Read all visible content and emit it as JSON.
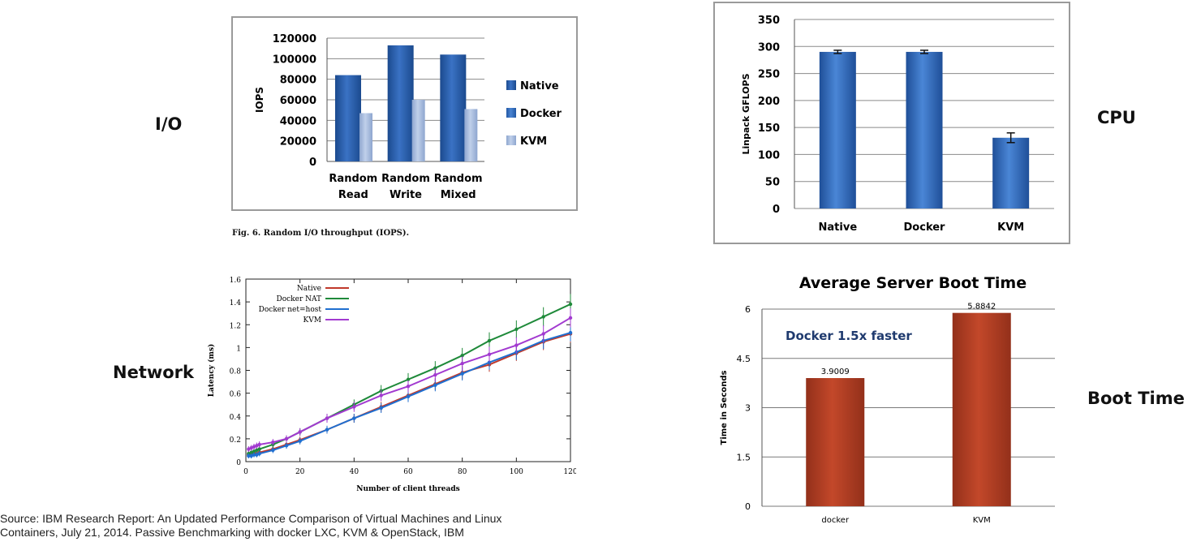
{
  "labels": {
    "io": "I/O",
    "cpu": "CPU",
    "network": "Network",
    "boot": "Boot Time"
  },
  "source": {
    "line1": "Source: IBM Research Report: An Updated Performance Comparison of Virtual Machines and Linux",
    "line2": "Containers, July 21, 2014. Passive Benchmarking with docker LXC, KVM & OpenStack, IBM"
  },
  "colors": {
    "native": "#1e4f9a",
    "docker": "#2a63b3",
    "kvm": "#9fb4d8",
    "cpu_bar": "#2c66b8",
    "boot_bar": "#b03a1f"
  },
  "chart_data": [
    {
      "id": "io",
      "type": "bar",
      "caption": "Fig. 6.    Random I/O throughput (IOPS).",
      "categories": [
        [
          "Random",
          "Read"
        ],
        [
          "Random",
          "Write"
        ],
        [
          "Random",
          "Mixed"
        ]
      ],
      "ylabel": "IOPS",
      "ylim": [
        0,
        120000
      ],
      "yticks": [
        "0",
        "20000",
        "40000",
        "60000",
        "80000",
        "100000",
        "120000"
      ],
      "grid": true,
      "legend_position": "right",
      "series": [
        {
          "name": "Native",
          "values": [
            84000,
            113000,
            104000
          ]
        },
        {
          "name": "Docker",
          "values": [
            84000,
            113000,
            104000
          ]
        },
        {
          "name": "KVM",
          "values": [
            47000,
            60000,
            51000
          ]
        }
      ]
    },
    {
      "id": "cpu",
      "type": "bar",
      "categories": [
        "Native",
        "Docker",
        "KVM"
      ],
      "ylabel": "Linpack GFLOPS",
      "ylim": [
        0,
        350
      ],
      "yticks": [
        "0",
        "50",
        "100",
        "150",
        "200",
        "250",
        "300",
        "350"
      ],
      "grid": true,
      "values": [
        290,
        290,
        131
      ],
      "errors": [
        3,
        3,
        9
      ]
    },
    {
      "id": "network",
      "type": "line",
      "xlabel": "Number of client threads",
      "ylabel": "Latency (ms)",
      "xlim": [
        0,
        120
      ],
      "ylim": [
        0,
        1.6
      ],
      "xticks": [
        "0",
        "20",
        "40",
        "60",
        "80",
        "100",
        "120"
      ],
      "yticks": [
        "0",
        "0.2",
        "0.4",
        "0.6",
        "0.8",
        "1",
        "1.2",
        "1.4",
        "1.6"
      ],
      "legend_position": "top-left",
      "x": [
        1,
        2,
        3,
        4,
        5,
        10,
        15,
        20,
        30,
        40,
        50,
        60,
        70,
        80,
        90,
        100,
        110,
        120
      ],
      "series": [
        {
          "name": "Native",
          "color": "#c0392b",
          "values": [
            0.06,
            0.06,
            0.07,
            0.07,
            0.08,
            0.11,
            0.15,
            0.19,
            0.28,
            0.38,
            0.48,
            0.58,
            0.68,
            0.78,
            0.85,
            0.95,
            1.05,
            1.12
          ]
        },
        {
          "name": "Docker NAT",
          "color": "#1f8a3a",
          "values": [
            0.07,
            0.08,
            0.09,
            0.1,
            0.11,
            0.15,
            0.2,
            0.26,
            0.38,
            0.5,
            0.62,
            0.72,
            0.82,
            0.93,
            1.06,
            1.16,
            1.27,
            1.38
          ]
        },
        {
          "name": "Docker net=host",
          "color": "#1f6fd0",
          "values": [
            0.05,
            0.05,
            0.06,
            0.06,
            0.07,
            0.1,
            0.14,
            0.18,
            0.28,
            0.38,
            0.47,
            0.57,
            0.67,
            0.77,
            0.87,
            0.96,
            1.06,
            1.13
          ]
        },
        {
          "name": "KVM",
          "color": "#a23ad0",
          "values": [
            0.11,
            0.12,
            0.13,
            0.14,
            0.15,
            0.17,
            0.2,
            0.26,
            0.38,
            0.48,
            0.58,
            0.66,
            0.76,
            0.86,
            0.94,
            1.02,
            1.12,
            1.26
          ]
        }
      ]
    },
    {
      "id": "boot",
      "type": "bar",
      "title": "Average Server Boot Time",
      "annotation": "Docker 1.5x faster",
      "categories": [
        "docker",
        "KVM"
      ],
      "values": [
        3.9009,
        5.8842
      ],
      "value_labels": [
        "3.9009",
        "5.8842"
      ],
      "ylabel": "Time in Seconds",
      "ylim": [
        0,
        6
      ],
      "yticks": [
        "0",
        "1.5",
        "3",
        "4.5",
        "6"
      ],
      "grid": true
    }
  ]
}
